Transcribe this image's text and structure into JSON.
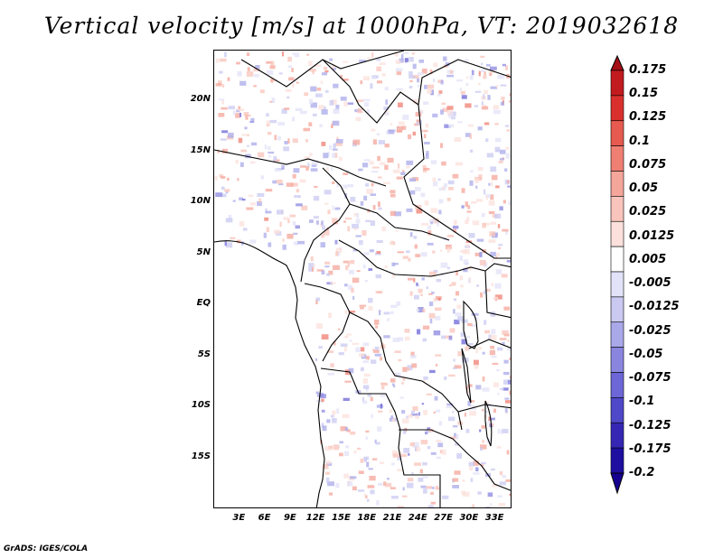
{
  "title": "Vertical velocity [m/s] at 1000hPa, VT: 2019032618",
  "credit": "GrADS: IGES/COLA",
  "map": {
    "lon_range": [
      0,
      35
    ],
    "lat_range": [
      -20,
      25
    ],
    "lat_ticks": [
      {
        "value": 20,
        "label": "20N"
      },
      {
        "value": 15,
        "label": "15N"
      },
      {
        "value": 10,
        "label": "10N"
      },
      {
        "value": 5,
        "label": "5N"
      },
      {
        "value": 0,
        "label": "EQ"
      },
      {
        "value": -5,
        "label": "5S"
      },
      {
        "value": -10,
        "label": "10S"
      },
      {
        "value": -15,
        "label": "15S"
      }
    ],
    "lon_ticks": [
      {
        "value": 3,
        "label": "3E"
      },
      {
        "value": 6,
        "label": "6E"
      },
      {
        "value": 9,
        "label": "9E"
      },
      {
        "value": 12,
        "label": "12E"
      },
      {
        "value": 15,
        "label": "15E"
      },
      {
        "value": 18,
        "label": "18E"
      },
      {
        "value": 21,
        "label": "21E"
      },
      {
        "value": 24,
        "label": "24E"
      },
      {
        "value": 27,
        "label": "27E"
      },
      {
        "value": 30,
        "label": "30E"
      },
      {
        "value": 33,
        "label": "33E"
      }
    ]
  },
  "colorbar": {
    "levels": [
      "0.175",
      "0.15",
      "0.125",
      "0.1",
      "0.075",
      "0.05",
      "0.025",
      "0.0125",
      "0.005",
      "-0.005",
      "-0.0125",
      "-0.025",
      "-0.05",
      "-0.075",
      "-0.1",
      "-0.125",
      "-0.175",
      "-0.2"
    ],
    "colors": [
      "#a50f15",
      "#c21b1f",
      "#d9302e",
      "#e65a4f",
      "#ef7f72",
      "#f4a69a",
      "#f8c4bb",
      "#fbe0db",
      "#ffffff",
      "#e2e2f8",
      "#c9c9f1",
      "#a9a9ea",
      "#8a86e0",
      "#6c66d6",
      "#4f48c8",
      "#3527b4",
      "#1f0fa0",
      "#160090"
    ]
  }
}
